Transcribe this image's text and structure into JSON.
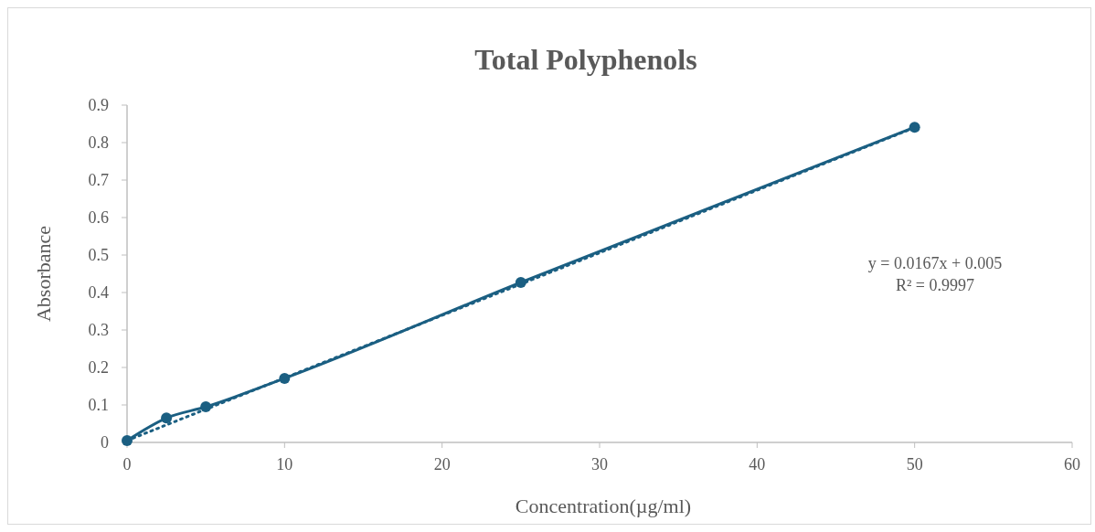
{
  "chart_data": {
    "type": "line",
    "title": "Total Polyphenols",
    "xlabel": "Concentration(µg/ml)",
    "ylabel": "Absorbance",
    "annotations": [
      "y = 0.0167x + 0.005",
      "R² = 0.9997"
    ],
    "x": [
      0,
      2.5,
      5,
      10,
      25,
      50
    ],
    "series": [
      {
        "color": "#1b5f82",
        "values": [
          0.005,
          0.065,
          0.095,
          0.171,
          0.427,
          0.841
        ],
        "marker": "circle",
        "line_style": "solid"
      },
      {
        "type": "line",
        "color": "#1b5f82",
        "x": [
          0,
          50
        ],
        "values": [
          0.005,
          0.84
        ],
        "marker": "none",
        "line_style": "dotted"
      }
    ],
    "xlim": [
      0,
      60
    ],
    "xticks": [
      0,
      10,
      20,
      30,
      40,
      50,
      60
    ],
    "ylim": [
      0,
      0.9
    ],
    "yticks": [
      0,
      0.1,
      0.2,
      0.3,
      0.4,
      0.5,
      0.6,
      0.7,
      0.8,
      0.9
    ],
    "grid": false
  }
}
